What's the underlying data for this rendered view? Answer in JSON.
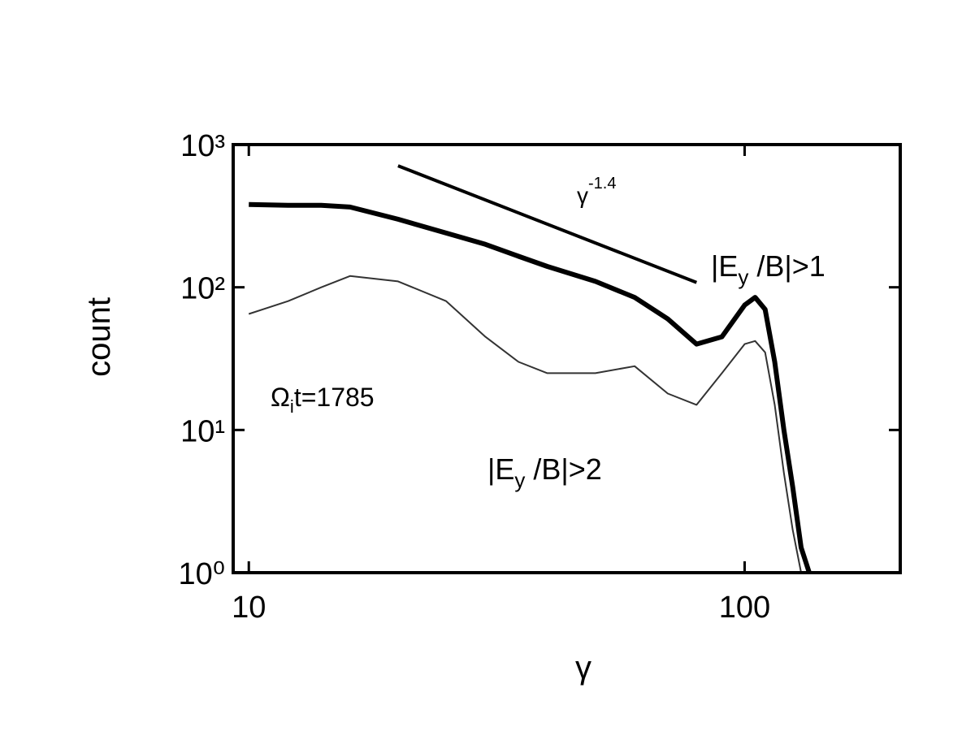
{
  "chart_data": {
    "type": "line",
    "x_label": "γ",
    "y_label": "count",
    "xlog": true,
    "ylog": true,
    "xlim": [
      9.3,
      206
    ],
    "ylim": [
      1,
      1000
    ],
    "xticks": [
      10,
      100
    ],
    "yticks": [
      {
        "value": 1,
        "label": "10⁰"
      },
      {
        "value": 10,
        "label": "10¹"
      },
      {
        "value": 100,
        "label": "10²"
      },
      {
        "value": 1000,
        "label": "10³"
      }
    ],
    "x": [
      10,
      12,
      14,
      16,
      20,
      25,
      30,
      35,
      40,
      50,
      60,
      70,
      80,
      90,
      100,
      105,
      110,
      115,
      120,
      125,
      130,
      135
    ],
    "series": [
      {
        "name": "|Ey /B|>1",
        "color": "#000000",
        "width": 6,
        "values": [
          380,
          375,
          375,
          365,
          300,
          240,
          200,
          165,
          140,
          110,
          85,
          60,
          40,
          45,
          75,
          85,
          70,
          30,
          10,
          4,
          1.5,
          1
        ]
      },
      {
        "name": "|Ey /B|>2",
        "color": "#333333",
        "width": 2,
        "values": [
          65,
          80,
          100,
          120,
          110,
          80,
          45,
          30,
          25,
          25,
          28,
          18,
          15,
          25,
          40,
          42,
          35,
          15,
          5,
          2,
          1,
          null
        ]
      }
    ],
    "fit_line": {
      "x": [
        20,
        80
      ],
      "values": [
        710,
        108
      ],
      "label": "γ",
      "label_exponent": "-1.4"
    },
    "annotations": [
      {
        "main": "Ω",
        "sub": "i",
        "rest": "t=1785"
      },
      {
        "main": "|E",
        "sub": "y",
        "rest": " /B|>1"
      },
      {
        "main": "|E",
        "sub": "y",
        "rest": " /B|>2"
      }
    ]
  }
}
